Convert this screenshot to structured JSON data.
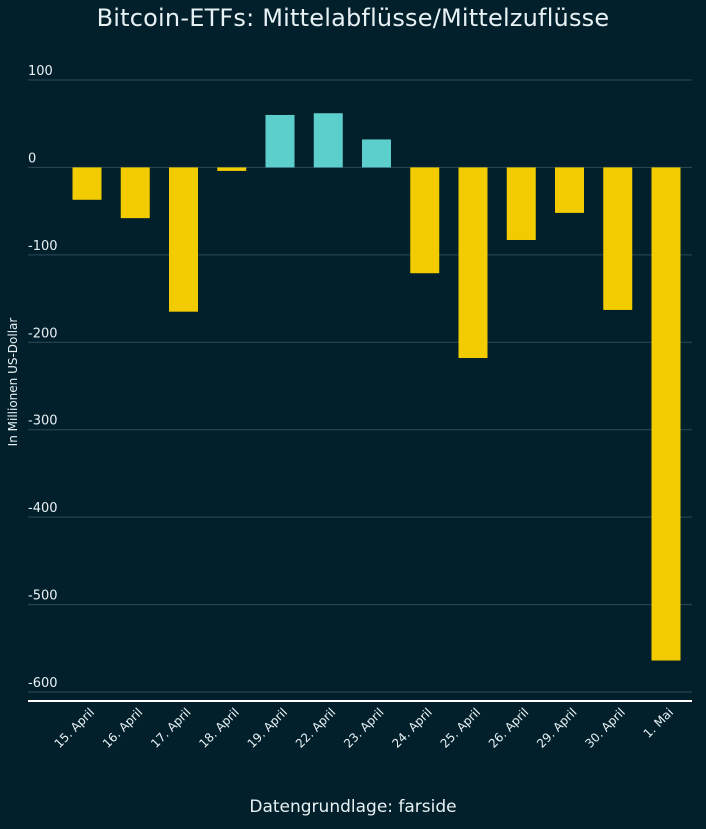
{
  "chart_data": {
    "type": "bar",
    "title": "Bitcoin-ETFs: Mittelabflüsse/Mittelzuflüsse",
    "ylabel": "In Millionen US-Dollar",
    "xlabel": "",
    "source": "Datengrundlage: farside",
    "ylim": [
      -600,
      100
    ],
    "yticks": [
      100,
      0,
      -100,
      -200,
      -300,
      -400,
      -500,
      -600
    ],
    "grid": true,
    "categories": [
      "15. April",
      "16. April",
      "17. April",
      "18. April",
      "19. April",
      "22. April",
      "23. April",
      "24. April",
      "25. April",
      "26. April",
      "29. April",
      "30. April",
      "1. Mai"
    ],
    "values": [
      -37,
      -58,
      -165,
      -4,
      60,
      62,
      32,
      -121,
      -218,
      -83,
      -52,
      -163,
      -564
    ],
    "colors": {
      "positive": "#5ccfcc",
      "negative": "#f2cc00",
      "grid": "#2d4a55",
      "axis": "#ffffff"
    }
  }
}
